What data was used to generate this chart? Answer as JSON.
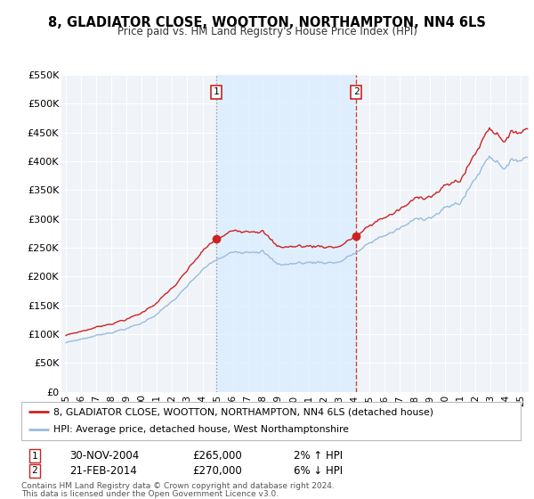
{
  "title": "8, GLADIATOR CLOSE, WOOTTON, NORTHAMPTON, NN4 6LS",
  "subtitle": "Price paid vs. HM Land Registry's House Price Index (HPI)",
  "ylim": [
    0,
    550000
  ],
  "yticks": [
    0,
    50000,
    100000,
    150000,
    200000,
    250000,
    300000,
    350000,
    400000,
    450000,
    500000,
    550000
  ],
  "ytick_labels": [
    "£0",
    "£50K",
    "£100K",
    "£150K",
    "£200K",
    "£250K",
    "£300K",
    "£350K",
    "£400K",
    "£450K",
    "£500K",
    "£550K"
  ],
  "xlim_start": 1994.7,
  "xlim_end": 2025.5,
  "xticks": [
    1995,
    1996,
    1997,
    1998,
    1999,
    2000,
    2001,
    2002,
    2003,
    2004,
    2005,
    2006,
    2007,
    2008,
    2009,
    2010,
    2011,
    2012,
    2013,
    2014,
    2015,
    2016,
    2017,
    2018,
    2019,
    2020,
    2021,
    2022,
    2023,
    2024,
    2025
  ],
  "sale1_date": 2004.92,
  "sale1_price": 265000,
  "sale1_label": "1",
  "sale2_date": 2014.13,
  "sale2_price": 270000,
  "sale2_label": "2",
  "red_line_color": "#cc2222",
  "blue_line_color": "#99bbdd",
  "shade_color": "#ddeeff",
  "marker_color": "#cc2222",
  "vline1_color": "#999999",
  "vline2_color": "#cc4444",
  "bg_color": "#ffffff",
  "plot_bg_color": "#f0f4f8",
  "grid_color": "#ffffff",
  "legend_label_red": "8, GLADIATOR CLOSE, WOOTTON, NORTHAMPTON, NN4 6LS (detached house)",
  "legend_label_blue": "HPI: Average price, detached house, West Northamptonshire",
  "footer1": "Contains HM Land Registry data © Crown copyright and database right 2024.",
  "footer2": "This data is licensed under the Open Government Licence v3.0.",
  "title_fontsize": 10.5,
  "subtitle_fontsize": 8.5
}
